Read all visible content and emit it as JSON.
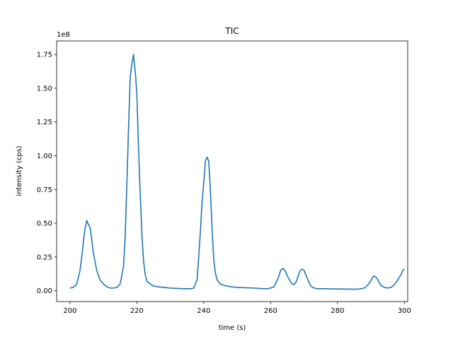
{
  "chart_data": {
    "type": "line",
    "title": "TIC",
    "xlabel": "time (s)",
    "ylabel": "intensity (cps)",
    "offset_label": "1e8",
    "xlim": [
      196,
      301
    ],
    "ylim": [
      -0.08,
      1.85
    ],
    "x_ticks": [
      200,
      220,
      240,
      260,
      280,
      300
    ],
    "x_tick_labels": [
      "200",
      "220",
      "240",
      "260",
      "280",
      "300"
    ],
    "y_ticks": [
      0,
      0.25,
      0.5,
      0.75,
      1.0,
      1.25,
      1.5,
      1.75
    ],
    "y_tick_labels": [
      "0.00",
      "0.25",
      "0.50",
      "0.75",
      "1.00",
      "1.25",
      "1.50",
      "1.75"
    ],
    "grid": false,
    "colors": {
      "line": "#1f77b4",
      "axes": "#000000",
      "background": "#ffffff"
    },
    "series": [
      {
        "x": [
          200,
          201,
          202,
          203,
          203.5,
          204,
          204.5,
          205,
          205.5,
          206,
          206.5,
          207,
          208,
          209,
          210,
          211,
          212,
          213,
          214,
          215,
          216,
          216.5,
          217,
          217.5,
          218,
          218.5,
          219,
          219.3,
          219.6,
          220,
          220.5,
          221,
          221.5,
          222,
          222.5,
          223,
          224,
          225,
          226,
          228,
          230,
          234,
          236,
          237,
          238,
          238.5,
          239,
          239.5,
          240,
          240.5,
          241,
          241.5,
          242,
          242.5,
          243,
          243.5,
          244,
          245,
          246,
          247,
          248,
          250,
          255,
          258,
          259,
          260,
          261,
          262,
          262.5,
          263,
          263.5,
          264,
          264.5,
          265,
          266,
          266.5,
          267,
          267.5,
          268,
          268.5,
          269,
          269.5,
          270,
          270.5,
          271,
          271.5,
          272,
          273,
          274,
          276,
          280,
          284,
          286,
          287,
          288,
          289,
          290,
          290.5,
          291,
          291.5,
          292,
          292.5,
          293,
          294,
          295,
          296,
          297,
          298,
          299,
          299.5,
          300
        ],
        "y": [
          0.02,
          0.025,
          0.05,
          0.15,
          0.25,
          0.36,
          0.46,
          0.52,
          0.49,
          0.47,
          0.38,
          0.28,
          0.15,
          0.08,
          0.05,
          0.03,
          0.02,
          0.02,
          0.025,
          0.05,
          0.18,
          0.4,
          0.78,
          1.2,
          1.58,
          1.68,
          1.75,
          1.67,
          1.6,
          1.45,
          1.05,
          0.72,
          0.42,
          0.22,
          0.12,
          0.07,
          0.05,
          0.035,
          0.03,
          0.025,
          0.02,
          0.015,
          0.015,
          0.02,
          0.08,
          0.25,
          0.44,
          0.66,
          0.8,
          0.96,
          0.99,
          0.96,
          0.74,
          0.45,
          0.23,
          0.13,
          0.08,
          0.05,
          0.04,
          0.035,
          0.03,
          0.025,
          0.02,
          0.015,
          0.015,
          0.02,
          0.03,
          0.08,
          0.11,
          0.15,
          0.165,
          0.16,
          0.14,
          0.11,
          0.065,
          0.05,
          0.045,
          0.06,
          0.09,
          0.13,
          0.155,
          0.16,
          0.15,
          0.12,
          0.09,
          0.06,
          0.035,
          0.02,
          0.015,
          0.015,
          0.013,
          0.012,
          0.012,
          0.015,
          0.02,
          0.04,
          0.075,
          0.1,
          0.11,
          0.1,
          0.085,
          0.06,
          0.04,
          0.025,
          0.02,
          0.025,
          0.045,
          0.08,
          0.12,
          0.15,
          0.16
        ]
      }
    ]
  }
}
